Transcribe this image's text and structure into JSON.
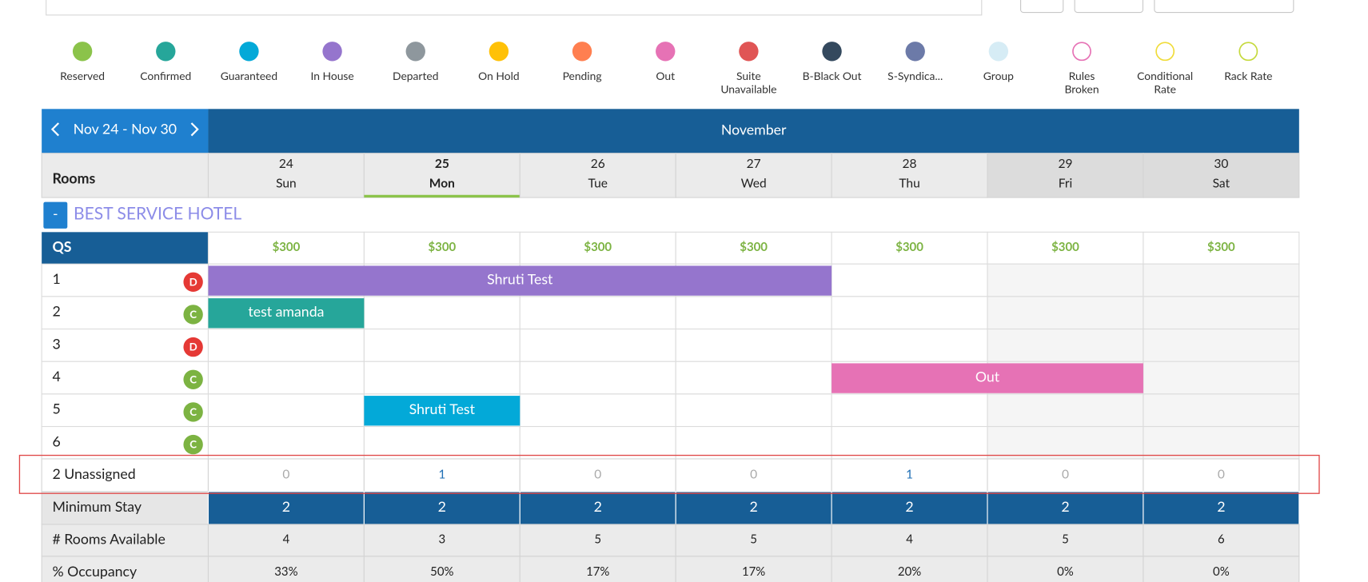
{
  "legend": [
    {
      "label": [
        "Reserved"
      ],
      "color": "#8bc34a",
      "outline": false
    },
    {
      "label": [
        "Confirmed"
      ],
      "color": "#26a69a",
      "outline": false
    },
    {
      "label": [
        "Guaranteed"
      ],
      "color": "#03a9d8",
      "outline": false
    },
    {
      "label": [
        "In House"
      ],
      "color": "#9575cd",
      "outline": false
    },
    {
      "label": [
        "Departed"
      ],
      "color": "#8e979d",
      "outline": false
    },
    {
      "label": [
        "On Hold"
      ],
      "color": "#ffc107",
      "outline": false
    },
    {
      "label": [
        "Pending"
      ],
      "color": "#ff7f50",
      "outline": false
    },
    {
      "label": [
        "Out"
      ],
      "color": "#e672b5",
      "outline": false
    },
    {
      "label": [
        "Suite",
        "Unavailable"
      ],
      "color": "#e05555",
      "outline": false
    },
    {
      "label": [
        "B-Black Out"
      ],
      "color": "#34495e",
      "outline": false
    },
    {
      "label": [
        "S-Syndica..."
      ],
      "color": "#6c7aa8",
      "outline": false
    },
    {
      "label": [
        "Group"
      ],
      "color": "#d6ecf5",
      "outline": false
    },
    {
      "label": [
        "Rules",
        "Broken"
      ],
      "color": "#e672b5",
      "outline": true
    },
    {
      "label": [
        "Conditional",
        "Rate"
      ],
      "color": "#f0dc3a",
      "outline": true
    },
    {
      "label": [
        "Rack Rate"
      ],
      "color": "#c5d93c",
      "outline": true
    }
  ],
  "calendar": {
    "range": "Nov 24 - Nov 30",
    "month": "November",
    "rooms_label": "Rooms",
    "days": [
      {
        "num": "24",
        "name": "Sun"
      },
      {
        "num": "25",
        "name": "Mon"
      },
      {
        "num": "26",
        "name": "Tue"
      },
      {
        "num": "27",
        "name": "Wed"
      },
      {
        "num": "28",
        "name": "Thu"
      },
      {
        "num": "29",
        "name": "Fri"
      },
      {
        "num": "30",
        "name": "Sat"
      }
    ],
    "collapse": "-",
    "hotel": "BEST SERVICE HOTEL",
    "room_type": "QS",
    "prices": [
      "$300",
      "$300",
      "$300",
      "$300",
      "$300",
      "$300",
      "$300"
    ],
    "rooms": [
      {
        "number": "1",
        "status": "D"
      },
      {
        "number": "2",
        "status": "C"
      },
      {
        "number": "3",
        "status": "D"
      },
      {
        "number": "4",
        "status": "C"
      },
      {
        "number": "5",
        "status": "C"
      },
      {
        "number": "6",
        "status": "C"
      }
    ],
    "bookings": [
      {
        "room": 0,
        "start": 0,
        "end": 4,
        "label": "Shruti Test",
        "color": "#9575cd"
      },
      {
        "room": 1,
        "start": 0,
        "end": 1,
        "label": "test amanda",
        "color": "#26a69a"
      },
      {
        "room": 3,
        "start": 4,
        "end": 6,
        "label": "Out",
        "color": "#e672b5"
      },
      {
        "room": 4,
        "start": 1,
        "end": 2,
        "label": "Shruti Test",
        "color": "#03a9d8"
      }
    ],
    "unassigned_label": "2 Unassigned",
    "unassigned": [
      "0",
      "1",
      "0",
      "0",
      "1",
      "0",
      "0"
    ],
    "min_stay_label": "Minimum Stay",
    "min_stay": [
      "2",
      "2",
      "2",
      "2",
      "2",
      "2",
      "2"
    ],
    "available_label": "# Rooms Available",
    "available": [
      "4",
      "3",
      "5",
      "5",
      "4",
      "5",
      "6"
    ],
    "occupancy_label": "% Occupancy",
    "occupancy": [
      "33%",
      "50%",
      "17%",
      "17%",
      "20%",
      "0%",
      "0%"
    ]
  }
}
